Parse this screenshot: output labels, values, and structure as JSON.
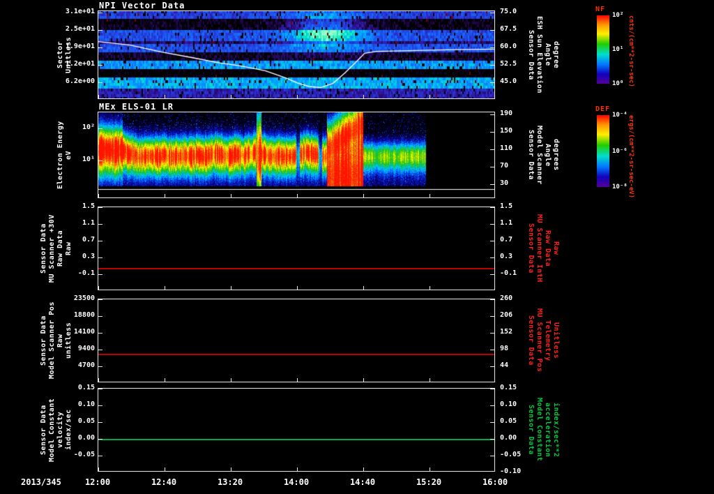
{
  "page": {
    "bg": "#000000",
    "fg": "#ffffff"
  },
  "xaxis": {
    "date_label": "2013/345",
    "ticks": [
      "12:00",
      "12:40",
      "13:20",
      "14:00",
      "14:40",
      "15:20",
      "16:00"
    ]
  },
  "colorbars": [
    {
      "title": "NF",
      "title_color": "#ff3300",
      "ticks": [
        {
          "label": "10²",
          "f": 0
        },
        {
          "label": "10¹",
          "f": 0.5
        },
        {
          "label": "10⁰",
          "f": 1
        }
      ],
      "units": "cnts/(cm**2-sr-sec)",
      "units_color": "#ff3300"
    },
    {
      "title": "DEF",
      "title_color": "#ff3300",
      "ticks": [
        {
          "label": "10⁻⁴",
          "f": 0
        },
        {
          "label": "10⁻⁶",
          "f": 0.5
        },
        {
          "label": "10⁻⁸",
          "f": 1
        }
      ],
      "units": "ergs/(cm**2-sr-sec-eV)",
      "units_color": "#ff3300"
    }
  ],
  "chart_data": [
    {
      "type": "heatmap",
      "title": "NPI Vector Data",
      "left_axis": {
        "label_lines": [
          "Sector",
          "Unitless"
        ],
        "range": [
          31.5,
          0
        ],
        "ticks": [
          {
            "v": 31,
            "label": "3.1e+01"
          },
          {
            "v": 24.8,
            "label": "2.5e+01"
          },
          {
            "v": 18.6,
            "label": "1.9e+01"
          },
          {
            "v": 12.4,
            "label": "1.2e+01"
          },
          {
            "v": 6.2,
            "label": "6.2e+00"
          }
        ]
      },
      "right_axis": {
        "label_lines": [
          "Sensor Data",
          "ESH Sun Elevation",
          "Angle",
          "degree"
        ],
        "label_color": "#ffffff",
        "range": [
          75.6,
          37.5
        ],
        "ticks": [
          {
            "v": 75,
            "label": "75.0"
          },
          {
            "v": 67.5,
            "label": "67.5"
          },
          {
            "v": 60,
            "label": "60.0"
          },
          {
            "v": 52.5,
            "label": "52.5"
          },
          {
            "v": 45,
            "label": "45.0"
          }
        ]
      },
      "overlay_line": {
        "color": "#ffffff",
        "axis": "right",
        "points": [
          [
            0,
            62.5
          ],
          [
            0.08,
            61
          ],
          [
            0.16,
            58
          ],
          [
            0.24,
            55.5
          ],
          [
            0.3,
            53.5
          ],
          [
            0.36,
            52
          ],
          [
            0.42,
            50
          ],
          [
            0.47,
            47
          ],
          [
            0.5,
            44.8
          ],
          [
            0.53,
            43.2
          ],
          [
            0.56,
            42.8
          ],
          [
            0.59,
            44.5
          ],
          [
            0.62,
            49
          ],
          [
            0.65,
            54
          ],
          [
            0.67,
            57.5
          ],
          [
            0.7,
            58.3
          ],
          [
            0.78,
            58.6
          ],
          [
            0.88,
            59
          ],
          [
            1,
            59.3
          ]
        ]
      },
      "texture": {
        "seed": 42,
        "row_intensity": [
          0.45,
          0.45,
          0.45,
          0.12,
          0.12,
          0.12,
          0.12,
          0.5,
          0.5,
          0.5,
          0.5,
          0.25,
          0.5,
          0.5,
          0.5,
          0.15,
          0.15,
          0.15,
          0.68,
          0.68,
          0.68,
          0.07,
          0.07,
          0.07,
          0.72,
          0.72,
          0.72,
          0.72,
          0.35,
          0.35,
          0.35,
          0.35
        ],
        "blob": {
          "t_center": 0.57,
          "t_sigma": 0.09,
          "row_center": 7,
          "row_sigma": 6.5,
          "amp": 0.5
        }
      }
    },
    {
      "type": "heatmap",
      "title": "MEx ELS-01 LR",
      "left_axis": {
        "label_lines": [
          "Electron Energy",
          "eV"
        ],
        "log": true,
        "range": [
          324,
          0.6
        ],
        "ticks": [
          {
            "v": 100,
            "label": "10²"
          },
          {
            "v": 10,
            "label": "10¹"
          }
        ]
      },
      "right_axis": {
        "label_lines": [
          "Sensor Data",
          "Model Scanner",
          "Angle",
          "degrees"
        ],
        "label_color": "#ffffff",
        "range": [
          194,
          -3
        ],
        "ticks": [
          {
            "v": 190,
            "label": "190"
          },
          {
            "v": 150,
            "label": "150"
          },
          {
            "v": 110,
            "label": "110"
          },
          {
            "v": 70,
            "label": "70"
          },
          {
            "v": 30,
            "label": "30"
          }
        ]
      },
      "texture": {
        "seed": 7,
        "data_end": 0.825,
        "spec_frac": 0.855,
        "burst": [
          0.575,
          0.665
        ],
        "spike": [
          0.398,
          0.41
        ],
        "gaps": [
          [
            0.497,
            0.507
          ],
          [
            0.553,
            0.563
          ]
        ],
        "post_amp": 0.6
      }
    },
    {
      "type": "line",
      "left_axis": {
        "label_lines": [
          "Sensor Data",
          "MU Scanner +30V",
          "Raw Data",
          "Raw"
        ],
        "range": [
          1.5,
          -0.5
        ],
        "ticks": [
          {
            "v": 1.5,
            "label": "1.5"
          },
          {
            "v": 1.1,
            "label": "1.1"
          },
          {
            "v": 0.7,
            "label": "0.7"
          },
          {
            "v": 0.3,
            "label": "0.3"
          },
          {
            "v": -0.1,
            "label": "-0.1"
          }
        ]
      },
      "right_axis": {
        "label_lines": [
          "Sensor Data",
          "MU Scanner IntH",
          "Raw Data",
          "Raw"
        ],
        "label_color": "#ff2020",
        "range": [
          1.5,
          -0.5
        ],
        "ticks": [
          {
            "v": 1.5,
            "label": "1.5"
          },
          {
            "v": 1.1,
            "label": "1.1"
          },
          {
            "v": 0.7,
            "label": "0.7"
          },
          {
            "v": 0.3,
            "label": "0.3"
          },
          {
            "v": -0.1,
            "label": "-0.1"
          }
        ]
      },
      "series": {
        "color": "#bb0000",
        "value": 0.05
      }
    },
    {
      "type": "line",
      "left_axis": {
        "label_lines": [
          "Sensor Data",
          "Model Scanner Pos",
          "Raw",
          "unitless"
        ],
        "range": [
          23500,
          0
        ],
        "ticks": [
          {
            "v": 23500,
            "label": "23500"
          },
          {
            "v": 18800,
            "label": "18800"
          },
          {
            "v": 14100,
            "label": "14100"
          },
          {
            "v": 9400,
            "label": "9400"
          },
          {
            "v": 4700,
            "label": "4700"
          }
        ]
      },
      "right_axis": {
        "label_lines": [
          "Sensor Data",
          "MU Scanner Pos",
          "Telemetry",
          "Unitless"
        ],
        "label_color": "#ff2020",
        "range": [
          260,
          -10
        ],
        "ticks": [
          {
            "v": 260,
            "label": "260"
          },
          {
            "v": 206,
            "label": "206"
          },
          {
            "v": 152,
            "label": "152"
          },
          {
            "v": 98,
            "label": "98"
          },
          {
            "v": 44,
            "label": "44"
          }
        ]
      },
      "series": {
        "color": "#bb0000",
        "value": 8200
      }
    },
    {
      "type": "line",
      "left_axis": {
        "label_lines": [
          "Sensor Data",
          "Model Constant",
          "velocity",
          "index/sec"
        ],
        "range": [
          0.15,
          -0.1
        ],
        "ticks": [
          {
            "v": 0.15,
            "label": "0.15"
          },
          {
            "v": 0.1,
            "label": "0.10"
          },
          {
            "v": 0.05,
            "label": "0.05"
          },
          {
            "v": 0,
            "label": "0.00"
          },
          {
            "v": -0.05,
            "label": "-0.05"
          }
        ]
      },
      "right_axis": {
        "label_lines": [
          "Sensor Data",
          "Model Constant",
          "acceleration",
          "index/sec**2"
        ],
        "label_color": "#00cc44",
        "range": [
          0.15,
          -0.1
        ],
        "ticks": [
          {
            "v": 0.15,
            "label": "0.15"
          },
          {
            "v": 0.1,
            "label": "0.10"
          },
          {
            "v": 0.05,
            "label": "0.05"
          },
          {
            "v": 0,
            "label": "0.00"
          },
          {
            "v": -0.05,
            "label": "-0.05"
          },
          {
            "v": -0.1,
            "label": "-0.10"
          }
        ]
      },
      "series": {
        "color": "#00aa44",
        "value": 0
      }
    }
  ]
}
